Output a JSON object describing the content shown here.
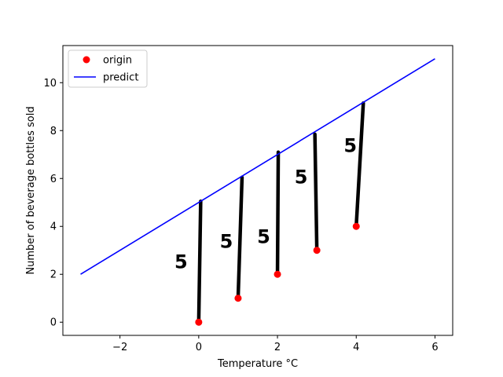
{
  "chart_data": {
    "type": "scatter",
    "title": "",
    "xlabel": "Temperature °C",
    "ylabel": "Number of beverage bottles sold",
    "xlim": [
      -3.45,
      6.45
    ],
    "ylim": [
      -0.55,
      11.55
    ],
    "xticks": [
      -2,
      0,
      2,
      4,
      6
    ],
    "yticks": [
      0,
      2,
      4,
      6,
      8,
      10
    ],
    "legend_position": "top-left",
    "series": [
      {
        "name": "origin",
        "kind": "points",
        "color": "#ff0000",
        "x": [
          0,
          1,
          2,
          3,
          4
        ],
        "y": [
          0,
          1,
          2,
          3,
          4
        ]
      },
      {
        "name": "predict",
        "kind": "line",
        "color": "#0000ff",
        "x": [
          -3,
          6
        ],
        "y": [
          2,
          11
        ]
      }
    ],
    "residual_strokes": {
      "color": "#000000",
      "segments": [
        {
          "from": [
            0,
            0
          ],
          "to": [
            0.05,
            5.05
          ]
        },
        {
          "from": [
            1,
            1
          ],
          "to": [
            1.1,
            6.05
          ]
        },
        {
          "from": [
            2,
            2
          ],
          "to": [
            2.02,
            7.1
          ]
        },
        {
          "from": [
            3,
            3
          ],
          "to": [
            2.95,
            7.85
          ]
        },
        {
          "from": [
            4,
            4
          ],
          "to": [
            4.18,
            9.15
          ]
        }
      ]
    },
    "annotations": [
      {
        "text": "5",
        "x": -0.45,
        "y": 2.25
      },
      {
        "text": "5",
        "x": 0.7,
        "y": 3.1
      },
      {
        "text": "5",
        "x": 1.65,
        "y": 3.3
      },
      {
        "text": "5",
        "x": 2.6,
        "y": 5.8
      },
      {
        "text": "5",
        "x": 3.85,
        "y": 7.1
      }
    ]
  }
}
